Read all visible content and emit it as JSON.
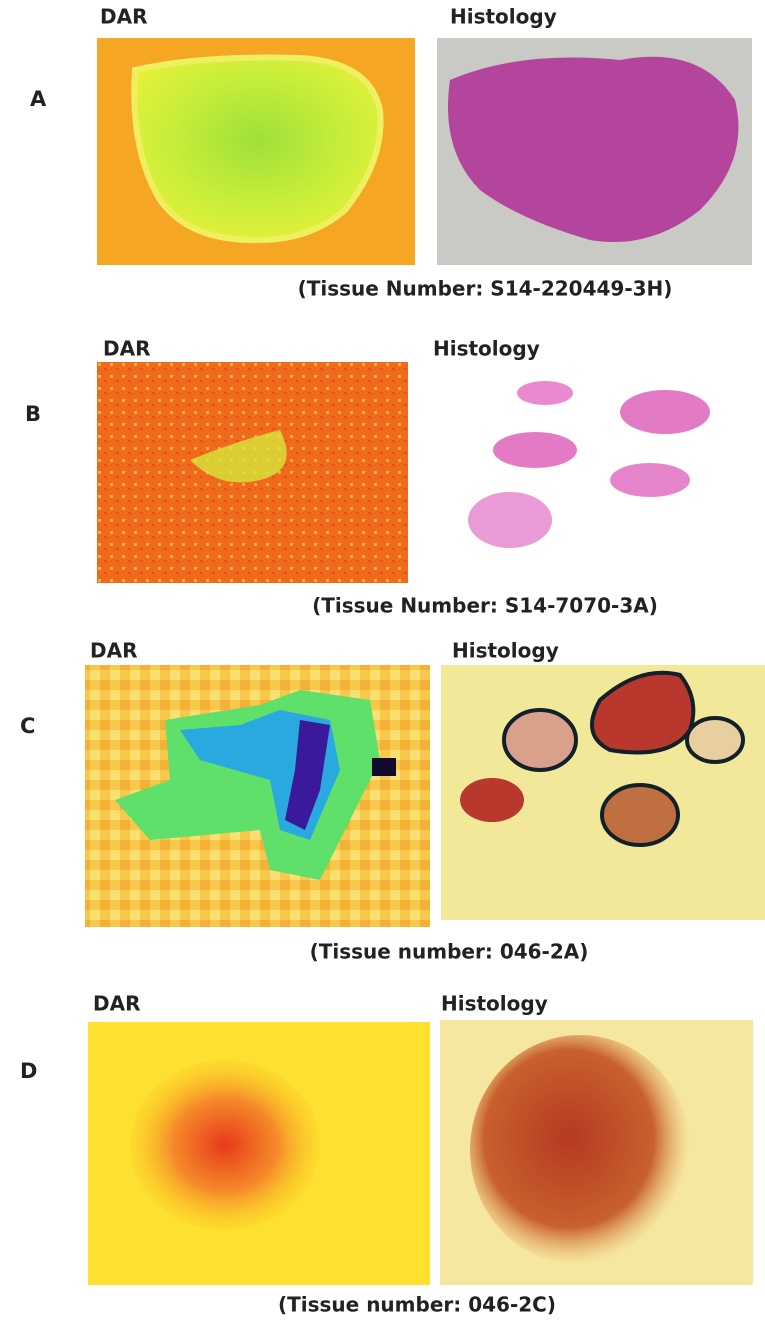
{
  "panels": [
    {
      "label": "A",
      "left_title": "DAR",
      "right_title": "Histology",
      "caption": "(Tissue Number: S14-220449-3H)"
    },
    {
      "label": "B",
      "left_title": "DAR",
      "right_title": "Histology",
      "caption": "(Tissue Number: S14-7070-3A)"
    },
    {
      "label": "C",
      "left_title": "DAR",
      "right_title": "Histology",
      "caption": "(Tissue number: 046-2A)"
    },
    {
      "label": "D",
      "left_title": "DAR",
      "right_title": "Histology",
      "caption": "(Tissue number: 046-2C)"
    }
  ]
}
